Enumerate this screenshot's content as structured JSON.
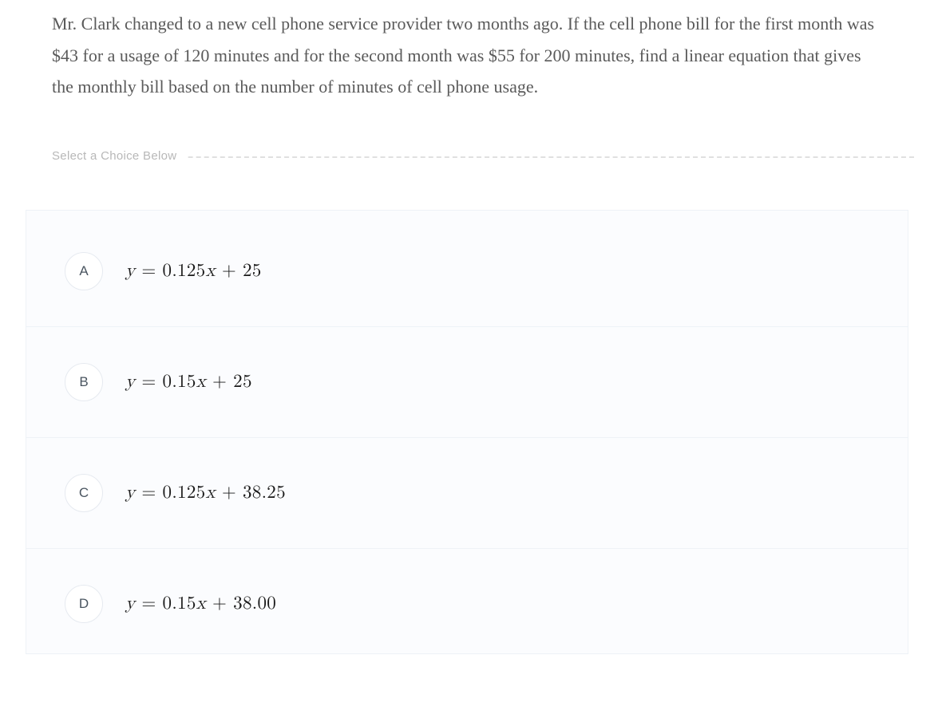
{
  "question": {
    "text": "Mr. Clark changed to a new cell phone service provider two months ago. If the cell phone bill for the first month was $43 for a usage of 120 minutes and for the second month was $55 for 200 minutes, find a linear equation that gives the monthly bill based on the number of minutes of cell phone usage."
  },
  "prompt_label": "Select a Choice Below",
  "choices": [
    {
      "letter": "A",
      "slope": "0.125",
      "intercept": "25"
    },
    {
      "letter": "B",
      "slope": "0.15",
      "intercept": "25"
    },
    {
      "letter": "C",
      "slope": "0.125",
      "intercept": "38.25"
    },
    {
      "letter": "D",
      "slope": "0.15",
      "intercept": "38.00"
    }
  ],
  "style": {
    "question_color": "#5a5a5a",
    "question_fontsize": 22,
    "label_color": "#b8b8b8",
    "label_fontsize": 15,
    "dash_color": "#e0e0e0",
    "box_bg": "#fbfcfe",
    "box_border": "#eef2f7",
    "badge_bg": "#ffffff",
    "badge_border": "#e6eaf0",
    "badge_text": "#4a5560",
    "formula_color": "#1a1a1a",
    "formula_fontsize": 23
  }
}
